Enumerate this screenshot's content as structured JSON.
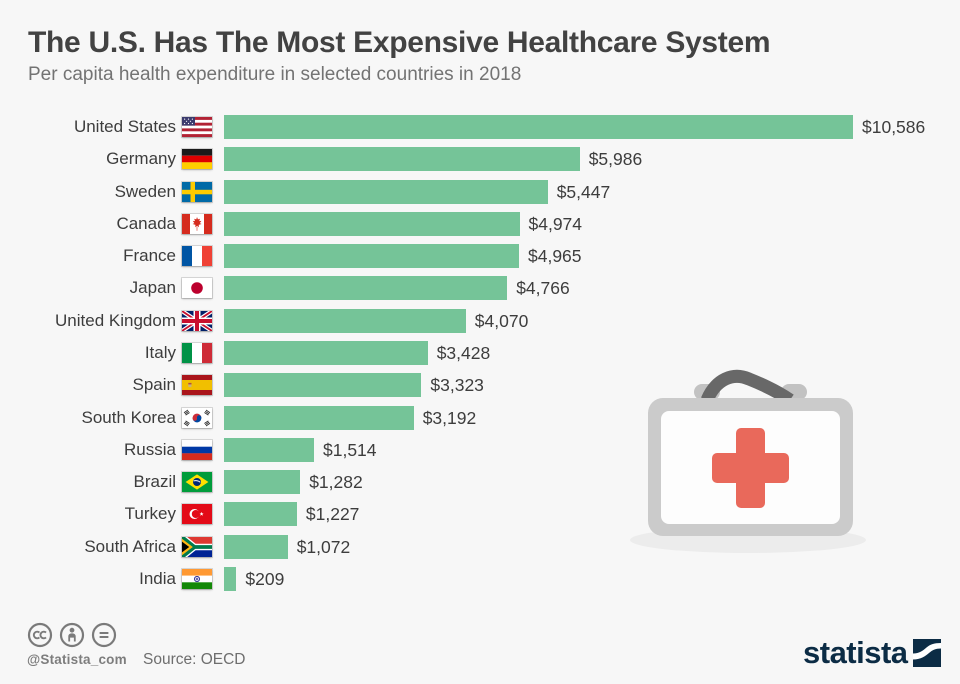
{
  "header": {
    "title": "The U.S. Has The Most Expensive Healthcare System",
    "subtitle": "Per capita health expenditure in selected countries in 2018"
  },
  "chart_data": {
    "type": "bar",
    "orientation": "horizontal",
    "title": "The U.S. Has The Most Expensive Healthcare System",
    "subtitle": "Per capita health expenditure in selected countries in 2018",
    "unit": "USD per capita",
    "xlim": [
      0,
      10586
    ],
    "grid": false,
    "legend": false,
    "bar_color": "#75c498",
    "categories": [
      "United States",
      "Germany",
      "Sweden",
      "Canada",
      "France",
      "Japan",
      "United Kingdom",
      "Italy",
      "Spain",
      "South Korea",
      "Russia",
      "Brazil",
      "Turkey",
      "South Africa",
      "India"
    ],
    "values": [
      10586,
      5986,
      5447,
      4974,
      4965,
      4766,
      4070,
      3428,
      3323,
      3192,
      1514,
      1282,
      1227,
      1072,
      209
    ],
    "value_labels": [
      "$10,586",
      "$5,986",
      "$5,447",
      "$4,974",
      "$4,965",
      "$4,766",
      "$4,070",
      "$3,428",
      "$3,323",
      "$3,192",
      "$1,514",
      "$1,282",
      "$1,227",
      "$1,072",
      "$209"
    ],
    "flags": [
      "us",
      "de",
      "se",
      "ca",
      "fr",
      "jp",
      "gb",
      "it",
      "es",
      "kr",
      "ru",
      "br",
      "tr",
      "za",
      "in"
    ]
  },
  "illustration": {
    "name": "first-aid-kit",
    "cross_color": "#e9695b",
    "case_color": "#cbcbcb"
  },
  "footer": {
    "license_icons": [
      "cc-icon",
      "attribution-icon",
      "no-derivatives-icon"
    ],
    "handle": "@Statista_com",
    "source": "Source: OECD",
    "brand": "statista"
  }
}
